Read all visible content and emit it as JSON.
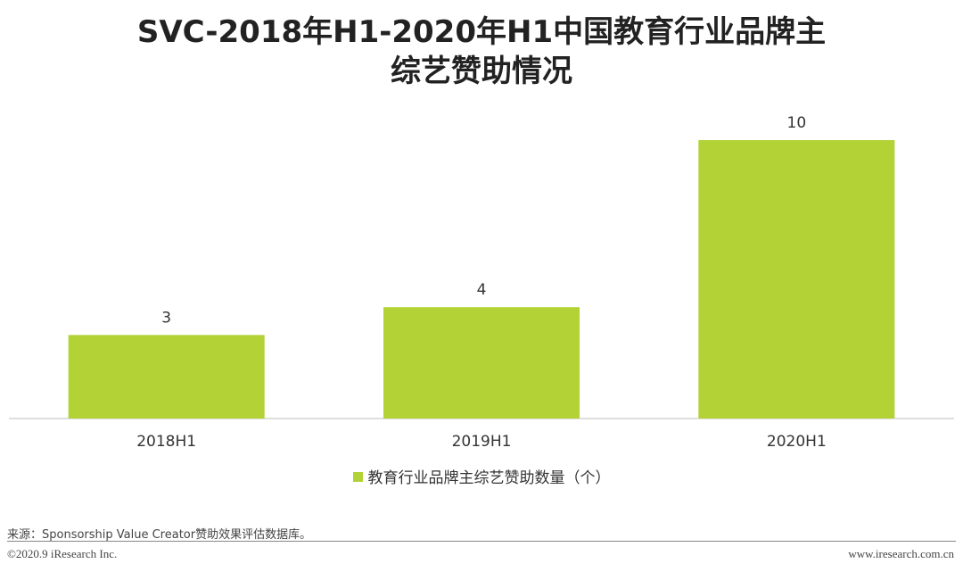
{
  "title": {
    "line1": "SVC-2018年H1-2020年H1中国教育行业品牌主",
    "line2": "综艺赞助情况"
  },
  "chart_data": {
    "type": "bar",
    "categories": [
      "2018H1",
      "2019H1",
      "2020H1"
    ],
    "series": [
      {
        "name": "教育行业品牌主综艺赞助数量（个）",
        "values": [
          3,
          4,
          10
        ]
      }
    ],
    "data_labels": [
      "3",
      "4",
      "10"
    ],
    "bar_color": "#b2d235",
    "ylim": [
      0,
      10
    ],
    "xlabel": "",
    "ylabel": "",
    "grid": false,
    "legend_position": "bottom"
  },
  "legend": {
    "label": "教育行业品牌主综艺赞助数量（个）"
  },
  "footer": {
    "source": "来源：Sponsorship Value Creator赞助效果评估数据库。",
    "copyright": "©2020.9 iResearch Inc.",
    "website": "www.iresearch.com.cn"
  }
}
